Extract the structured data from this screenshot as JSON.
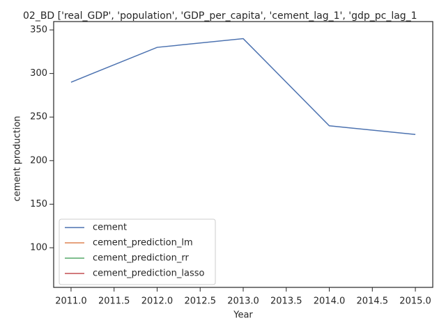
{
  "chart_data": {
    "type": "line",
    "title": "02_BD ['real_GDP', 'population', 'GDP_per_capita', 'cement_lag_1', 'gdp_pc_lag_1",
    "xlabel": "Year",
    "ylabel": "cement production",
    "x": [
      2011,
      2012,
      2013,
      2014,
      2015
    ],
    "series": [
      {
        "name": "cement",
        "color": "#4c72b0",
        "values": [
          290,
          330,
          340,
          240,
          230
        ]
      },
      {
        "name": "cement_prediction_lm",
        "color": "#dd8452",
        "values": [
          null,
          null,
          null,
          null,
          null
        ]
      },
      {
        "name": "cement_prediction_rr",
        "color": "#55a868",
        "values": [
          null,
          null,
          null,
          null,
          null
        ]
      },
      {
        "name": "cement_prediction_lasso",
        "color": "#c44e52",
        "values": [
          null,
          null,
          null,
          null,
          null
        ]
      }
    ],
    "xlim": [
      2010.798,
      2015.202
    ],
    "xticks": [
      {
        "value": 2011,
        "label": "2011.0"
      },
      {
        "value": 2011.5,
        "label": "2011.5"
      },
      {
        "value": 2012,
        "label": "2012.0"
      },
      {
        "value": 2012.5,
        "label": "2012.5"
      },
      {
        "value": 2013,
        "label": "2013.0"
      },
      {
        "value": 2013.5,
        "label": "2013.5"
      },
      {
        "value": 2014,
        "label": "2014.0"
      },
      {
        "value": 2014.5,
        "label": "2014.5"
      },
      {
        "value": 2015,
        "label": "2015.0"
      }
    ],
    "ylim": [
      54.5,
      359.6
    ],
    "yticks": [
      100,
      150,
      200,
      250,
      300,
      350
    ],
    "legend": "lower left"
  }
}
